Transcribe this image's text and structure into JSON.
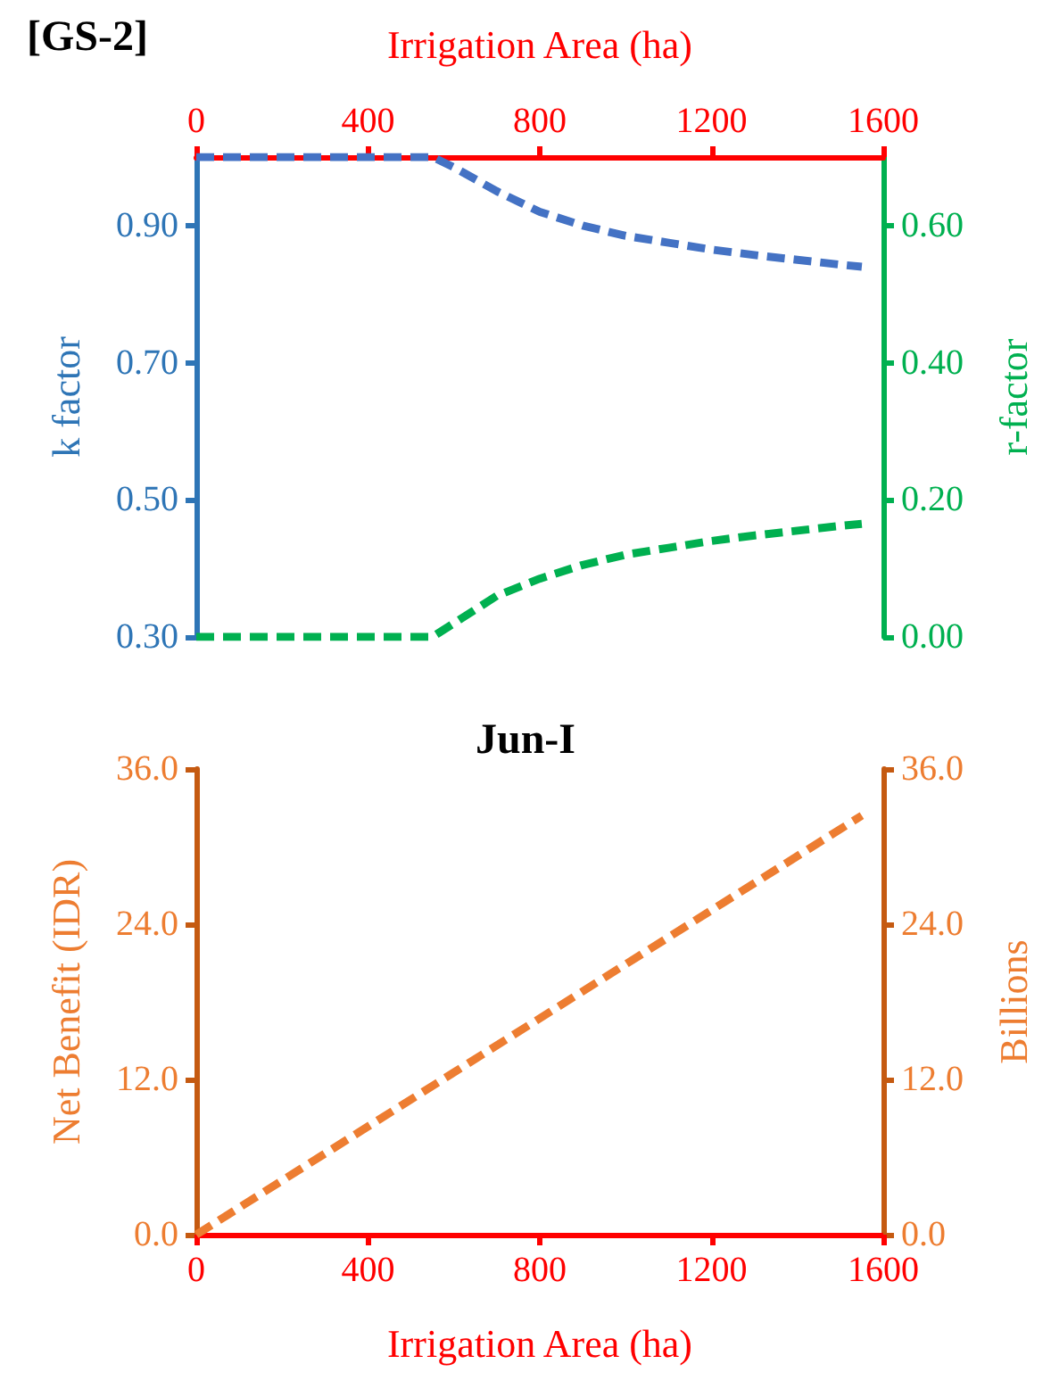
{
  "chart_data": [
    {
      "type": "line",
      "title": "[GS-2]",
      "xlabel": "Irrigation Area (ha)",
      "ylabel": "k factor",
      "y2label": "r-factor",
      "xlim": [
        0,
        1600
      ],
      "xticks": [
        0,
        400,
        800,
        1200,
        1600
      ],
      "ylim": [
        0.3,
        1.0
      ],
      "yticks": [
        {
          "value": 0.3,
          "label": "0.30"
        },
        {
          "value": 0.5,
          "label": "0.50"
        },
        {
          "value": 0.7,
          "label": "0.70"
        },
        {
          "value": 0.9,
          "label": "0.90"
        }
      ],
      "y2lim": [
        0,
        0.7
      ],
      "y2ticks": [
        {
          "value": 0,
          "label": "0.00"
        },
        {
          "value": 0.2,
          "label": "0.20"
        },
        {
          "value": 0.4,
          "label": "0.40"
        },
        {
          "value": 0.6,
          "label": "0.60"
        }
      ],
      "series": [
        {
          "color": "#4472c4",
          "x": [
            0,
            200,
            400,
            550,
            600,
            700,
            800,
            900,
            1000,
            1100,
            1200,
            1300,
            1400,
            1500,
            1550
          ],
          "values": [
            1.0,
            1.0,
            1.0,
            1.0,
            0.985,
            0.95,
            0.92,
            0.9,
            0.885,
            0.875,
            0.865,
            0.857,
            0.85,
            0.843,
            0.84
          ]
        },
        {
          "color": "#00b050",
          "axis": "y2",
          "x": [
            0,
            200,
            400,
            550,
            600,
            700,
            800,
            900,
            1000,
            1100,
            1200,
            1300,
            1400,
            1500,
            1550
          ],
          "values": [
            0,
            0,
            0,
            0,
            0.02,
            0.06,
            0.085,
            0.105,
            0.12,
            0.13,
            0.14,
            0.148,
            0.155,
            0.162,
            0.165
          ]
        }
      ],
      "grid": false,
      "marker": "none",
      "line_style": "dashed"
    },
    {
      "type": "line",
      "title": "Jun-I",
      "xlabel": "Irrigation Area (ha)",
      "ylabel": "Net Benefit (IDR)",
      "y2label": "Billions",
      "xlim": [
        0,
        1600
      ],
      "xticks": [
        0,
        400,
        800,
        1200,
        1600
      ],
      "ylim": [
        0,
        36
      ],
      "yticks": [
        {
          "value": 0,
          "label": "0.0"
        },
        {
          "value": 12,
          "label": "12.0"
        },
        {
          "value": 24,
          "label": "24.0"
        },
        {
          "value": 36,
          "label": "36.0"
        }
      ],
      "y2lim": [
        0,
        36
      ],
      "y2ticks": [
        {
          "value": 0,
          "label": "0.0"
        },
        {
          "value": 12,
          "label": "12.0"
        },
        {
          "value": 24,
          "label": "24.0"
        },
        {
          "value": 36,
          "label": "36.0"
        }
      ],
      "series": [
        {
          "color": "#ed7d31",
          "x": [
            0,
            1550
          ],
          "values": [
            0,
            32.4
          ]
        }
      ],
      "grid": false,
      "marker": "none",
      "line_style": "dashed"
    }
  ]
}
